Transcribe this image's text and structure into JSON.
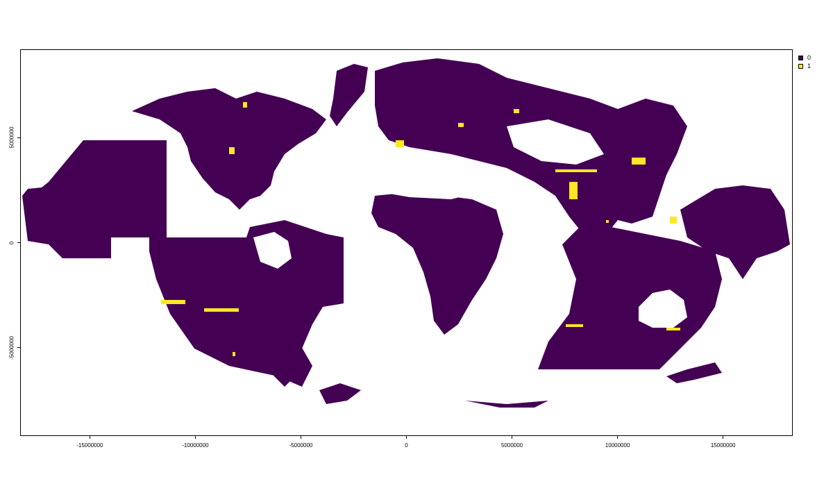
{
  "map": {
    "colors": {
      "zero": "#440154",
      "one": "#FDE725",
      "background": "#ffffff"
    },
    "x_ticks": [
      "-15000000",
      "-10000000",
      "-5000000",
      "0",
      "5000000",
      "10000000",
      "15000000"
    ],
    "y_ticks": [
      "5000000",
      "0",
      "-5000000"
    ],
    "x_tick_values": [
      -15000000,
      -10000000,
      -5000000,
      0,
      5000000,
      10000000,
      15000000
    ],
    "y_tick_values": [
      5000000,
      0,
      -5000000
    ],
    "xlim": [
      -18300000,
      18300000
    ],
    "ylim": [
      -9200000,
      9200000
    ],
    "legend": [
      {
        "label": "0",
        "color": "#440154"
      },
      {
        "label": "1",
        "color": "#FDE725"
      }
    ]
  }
}
